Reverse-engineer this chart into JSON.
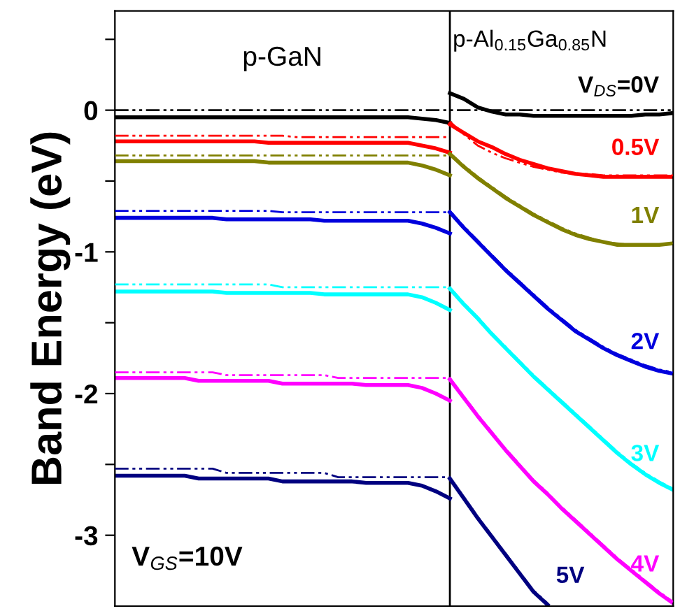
{
  "chart_data": {
    "type": "line",
    "ylabel": "Band Energy (eV)",
    "annotations": [
      "p-GaN",
      "V$_{GS}$=10V",
      "p-Al$_{0.15}$Ga$_{0.85}$N"
    ],
    "tick_labels": "y",
    "grid": false,
    "legend": false,
    "marker": "none",
    "ylim": [
      -3.5,
      0.7
    ],
    "yticks": [
      {
        "value": 0.5,
        "label": null
      },
      0,
      {
        "value": -0.5,
        "label": null
      },
      -1,
      {
        "value": -1.5,
        "label": null
      },
      -2,
      {
        "value": -2.5,
        "label": null
      },
      -3
    ],
    "categories": [
      null,
      null,
      null,
      null,
      null,
      null,
      null,
      null,
      null,
      null,
      null,
      null,
      null,
      null,
      null,
      null,
      null,
      null,
      null,
      null,
      null,
      null,
      null,
      null,
      null,
      null,
      null,
      null,
      null,
      null,
      null,
      null,
      null,
      null,
      null,
      null,
      null,
      null,
      null,
      null,
      null
    ],
    "series": [
      {
        "color": "#000000",
        "line_style": "solid",
        "values": [
          -0.05,
          -0.05,
          -0.05,
          -0.05,
          -0.05,
          -0.05,
          -0.05,
          -0.05,
          -0.05,
          -0.05,
          -0.05,
          -0.05,
          -0.05,
          -0.05,
          -0.05,
          -0.05,
          -0.05,
          -0.05,
          -0.05,
          -0.05,
          -0.05,
          -0.05,
          -0.06,
          -0.07,
          -0.09,
          null,
          null,
          null,
          null,
          null,
          null,
          null,
          null,
          null,
          null,
          null,
          null,
          null,
          null,
          null,
          null
        ]
      },
      {
        "color": "#000000",
        "line_style": "dashed",
        "values": [
          0,
          0,
          0,
          0,
          0,
          0,
          0,
          0,
          0,
          0,
          0,
          0,
          0,
          0,
          0,
          0,
          0,
          0,
          0,
          0,
          0,
          0,
          0,
          0,
          0,
          0,
          0,
          0,
          0,
          0,
          0,
          0,
          0,
          0,
          0,
          0,
          0,
          0,
          0,
          0,
          0
        ]
      },
      {
        "color": "#ff0000",
        "line_style": "solid",
        "values": [
          -0.22,
          -0.22,
          -0.22,
          -0.22,
          -0.22,
          -0.22,
          -0.22,
          -0.22,
          -0.22,
          -0.22,
          -0.22,
          -0.23,
          -0.23,
          -0.23,
          -0.23,
          -0.23,
          -0.23,
          -0.23,
          -0.23,
          -0.23,
          -0.23,
          -0.23,
          -0.25,
          -0.27,
          -0.3,
          null,
          null,
          null,
          null,
          null,
          null,
          null,
          null,
          null,
          null,
          null,
          null,
          null,
          null,
          null,
          null
        ]
      },
      {
        "color": "#ff0000",
        "line_style": "dashed",
        "values": [
          -0.18,
          -0.18,
          -0.18,
          -0.18,
          -0.18,
          -0.18,
          -0.18,
          -0.18,
          -0.18,
          -0.18,
          -0.18,
          -0.18,
          -0.18,
          -0.19,
          -0.19,
          -0.19,
          -0.19,
          -0.19,
          -0.19,
          -0.19,
          -0.19,
          -0.19,
          -0.19,
          -0.19,
          -0.19,
          null,
          null,
          null,
          null,
          null,
          null,
          null,
          null,
          null,
          null,
          null,
          null,
          null,
          null,
          null,
          null
        ]
      },
      {
        "color": "#808000",
        "line_style": "solid",
        "values": [
          -0.36,
          -0.36,
          -0.36,
          -0.36,
          -0.36,
          -0.36,
          -0.36,
          -0.36,
          -0.36,
          -0.36,
          -0.36,
          -0.37,
          -0.37,
          -0.37,
          -0.37,
          -0.37,
          -0.37,
          -0.37,
          -0.37,
          -0.37,
          -0.37,
          -0.37,
          -0.39,
          -0.42,
          -0.46,
          null,
          null,
          null,
          null,
          null,
          null,
          null,
          null,
          null,
          null,
          null,
          null,
          null,
          null,
          null,
          null
        ]
      },
      {
        "color": "#808000",
        "line_style": "dashed",
        "values": [
          -0.32,
          -0.32,
          -0.32,
          -0.32,
          -0.32,
          -0.32,
          -0.32,
          -0.32,
          -0.32,
          -0.32,
          -0.32,
          -0.32,
          -0.32,
          -0.32,
          -0.32,
          -0.32,
          -0.32,
          -0.32,
          -0.32,
          -0.32,
          -0.32,
          -0.32,
          -0.32,
          -0.32,
          -0.32,
          null,
          null,
          null,
          null,
          null,
          null,
          null,
          null,
          null,
          null,
          null,
          null,
          null,
          null,
          null,
          null
        ]
      },
      {
        "color": "#0000dd",
        "line_style": "solid",
        "values": [
          -0.76,
          -0.76,
          -0.76,
          -0.76,
          -0.76,
          -0.76,
          -0.76,
          -0.76,
          -0.77,
          -0.77,
          -0.77,
          -0.77,
          -0.77,
          -0.77,
          -0.77,
          -0.78,
          -0.78,
          -0.78,
          -0.78,
          -0.78,
          -0.78,
          -0.78,
          -0.8,
          -0.83,
          -0.87,
          null,
          null,
          null,
          null,
          null,
          null,
          null,
          null,
          null,
          null,
          null,
          null,
          null,
          null,
          null,
          null
        ]
      },
      {
        "color": "#0000dd",
        "line_style": "dashed",
        "values": [
          -0.71,
          -0.71,
          -0.71,
          -0.71,
          -0.71,
          -0.71,
          -0.71,
          -0.71,
          -0.71,
          -0.71,
          -0.71,
          -0.71,
          -0.72,
          -0.72,
          -0.72,
          -0.72,
          -0.72,
          -0.72,
          -0.72,
          -0.72,
          -0.72,
          -0.72,
          -0.72,
          -0.72,
          -0.72,
          null,
          null,
          null,
          null,
          null,
          null,
          null,
          null,
          null,
          null,
          null,
          null,
          null,
          null,
          null,
          null
        ]
      },
      {
        "color": "#00ffff",
        "line_style": "solid",
        "values": [
          -1.28,
          -1.28,
          -1.28,
          -1.28,
          -1.28,
          -1.28,
          -1.28,
          -1.28,
          -1.29,
          -1.29,
          -1.29,
          -1.29,
          -1.29,
          -1.29,
          -1.29,
          -1.3,
          -1.3,
          -1.3,
          -1.3,
          -1.3,
          -1.3,
          -1.3,
          -1.32,
          -1.36,
          -1.41,
          null,
          null,
          null,
          null,
          null,
          null,
          null,
          null,
          null,
          null,
          null,
          null,
          null,
          null,
          null,
          null
        ]
      },
      {
        "color": "#00ffff",
        "line_style": "dashed",
        "values": [
          -1.23,
          -1.23,
          -1.23,
          -1.23,
          -1.23,
          -1.23,
          -1.23,
          -1.23,
          -1.23,
          -1.23,
          -1.23,
          -1.23,
          -1.25,
          -1.25,
          -1.25,
          -1.25,
          -1.25,
          -1.25,
          -1.25,
          -1.25,
          -1.25,
          -1.25,
          -1.25,
          -1.25,
          -1.25,
          null,
          null,
          null,
          null,
          null,
          null,
          null,
          null,
          null,
          null,
          null,
          null,
          null,
          null,
          null,
          null
        ]
      },
      {
        "color": "#ff00ff",
        "line_style": "solid",
        "values": [
          -1.89,
          -1.89,
          -1.89,
          -1.89,
          -1.89,
          -1.89,
          -1.91,
          -1.91,
          -1.91,
          -1.91,
          -1.91,
          -1.91,
          -1.93,
          -1.93,
          -1.93,
          -1.93,
          -1.93,
          -1.93,
          -1.94,
          -1.94,
          -1.94,
          -1.94,
          -1.96,
          -2.0,
          -2.05,
          null,
          null,
          null,
          null,
          null,
          null,
          null,
          null,
          null,
          null,
          null,
          null,
          null,
          null,
          null,
          null
        ]
      },
      {
        "color": "#ff00ff",
        "line_style": "dashed",
        "values": [
          -1.85,
          -1.85,
          -1.85,
          -1.85,
          -1.85,
          -1.85,
          -1.85,
          -1.85,
          -1.87,
          -1.87,
          -1.87,
          -1.87,
          -1.87,
          -1.87,
          -1.87,
          -1.87,
          -1.89,
          -1.89,
          -1.89,
          -1.89,
          -1.89,
          -1.89,
          -1.89,
          -1.89,
          -1.89,
          null,
          null,
          null,
          null,
          null,
          null,
          null,
          null,
          null,
          null,
          null,
          null,
          null,
          null,
          null,
          null
        ]
      },
      {
        "color": "#000080",
        "line_style": "solid",
        "values": [
          -2.58,
          -2.58,
          -2.58,
          -2.58,
          -2.58,
          -2.58,
          -2.6,
          -2.6,
          -2.6,
          -2.6,
          -2.6,
          -2.6,
          -2.62,
          -2.62,
          -2.62,
          -2.62,
          -2.62,
          -2.62,
          -2.63,
          -2.63,
          -2.63,
          -2.63,
          -2.65,
          -2.69,
          -2.74,
          null,
          null,
          null,
          null,
          null,
          null,
          null,
          null,
          null,
          null,
          null,
          null,
          null,
          null,
          null,
          null
        ]
      },
      {
        "color": "#000080",
        "line_style": "dashed",
        "values": [
          -2.53,
          -2.53,
          -2.53,
          -2.53,
          -2.53,
          -2.53,
          -2.53,
          -2.53,
          -2.56,
          -2.56,
          -2.56,
          -2.56,
          -2.56,
          -2.56,
          -2.56,
          -2.56,
          -2.59,
          -2.59,
          -2.59,
          -2.59,
          -2.59,
          -2.59,
          -2.59,
          -2.59,
          -2.59,
          null,
          null,
          null,
          null,
          null,
          null,
          null,
          null,
          null,
          null,
          null,
          null,
          null,
          null,
          null,
          null
        ]
      },
      {
        "name": "V$_{DS}$=0V",
        "color": "#000000",
        "line_style": "solid",
        "values": [
          null,
          null,
          null,
          null,
          null,
          null,
          null,
          null,
          null,
          null,
          null,
          null,
          null,
          null,
          null,
          null,
          null,
          null,
          null,
          null,
          null,
          null,
          null,
          null,
          0.12,
          0.08,
          0.02,
          -0.01,
          -0.03,
          -0.03,
          -0.04,
          -0.04,
          -0.04,
          -0.04,
          -0.04,
          -0.04,
          -0.04,
          -0.04,
          -0.03,
          -0.03,
          -0.02
        ]
      },
      {
        "name": "0.5V",
        "color": "#ff0000",
        "line_style": "solid",
        "values": [
          null,
          null,
          null,
          null,
          null,
          null,
          null,
          null,
          null,
          null,
          null,
          null,
          null,
          null,
          null,
          null,
          null,
          null,
          null,
          null,
          null,
          null,
          null,
          null,
          -0.1,
          -0.16,
          -0.22,
          -0.26,
          -0.31,
          -0.35,
          -0.38,
          -0.41,
          -0.43,
          -0.45,
          -0.46,
          -0.47,
          -0.47,
          -0.47,
          -0.47,
          -0.47,
          -0.47
        ]
      },
      {
        "color": "#ff0000",
        "line_style": "dashed",
        "values": [
          null,
          null,
          null,
          null,
          null,
          null,
          null,
          null,
          null,
          null,
          null,
          null,
          null,
          null,
          null,
          null,
          null,
          null,
          null,
          null,
          null,
          null,
          null,
          null,
          -0.08,
          -0.17,
          -0.25,
          -0.3,
          -0.34,
          -0.37,
          -0.4,
          -0.42,
          -0.44,
          -0.45,
          -0.45,
          -0.46,
          -0.46,
          -0.46,
          -0.46,
          -0.46,
          -0.46
        ]
      },
      {
        "name": "1V",
        "color": "#808000",
        "line_style": "solid",
        "values": [
          null,
          null,
          null,
          null,
          null,
          null,
          null,
          null,
          null,
          null,
          null,
          null,
          null,
          null,
          null,
          null,
          null,
          null,
          null,
          null,
          null,
          null,
          null,
          null,
          -0.31,
          -0.4,
          -0.48,
          -0.55,
          -0.62,
          -0.68,
          -0.74,
          -0.79,
          -0.84,
          -0.88,
          -0.91,
          -0.93,
          -0.95,
          -0.95,
          -0.95,
          -0.95,
          -0.94
        ]
      },
      {
        "color": "#808000",
        "line_style": "dashed",
        "values": [
          null,
          null,
          null,
          null,
          null,
          null,
          null,
          null,
          null,
          null,
          null,
          null,
          null,
          null,
          null,
          null,
          null,
          null,
          null,
          null,
          null,
          null,
          null,
          null,
          -0.3,
          -0.39,
          -0.47,
          -0.54,
          -0.61,
          -0.67,
          -0.73,
          -0.78,
          -0.83,
          -0.87,
          -0.9,
          -0.93,
          -0.94,
          -0.95,
          -0.95,
          -0.95,
          -0.94
        ]
      },
      {
        "name": "2V",
        "color": "#0000dd",
        "line_style": "solid",
        "values": [
          null,
          null,
          null,
          null,
          null,
          null,
          null,
          null,
          null,
          null,
          null,
          null,
          null,
          null,
          null,
          null,
          null,
          null,
          null,
          null,
          null,
          null,
          null,
          null,
          -0.72,
          -0.83,
          -0.93,
          -1.03,
          -1.13,
          -1.22,
          -1.31,
          -1.4,
          -1.48,
          -1.56,
          -1.62,
          -1.68,
          -1.73,
          -1.77,
          -1.81,
          -1.84,
          -1.86
        ]
      },
      {
        "color": "#0000dd",
        "line_style": "dashed",
        "values": [
          null,
          null,
          null,
          null,
          null,
          null,
          null,
          null,
          null,
          null,
          null,
          null,
          null,
          null,
          null,
          null,
          null,
          null,
          null,
          null,
          null,
          null,
          null,
          null,
          -0.71,
          -0.82,
          -0.92,
          -1.02,
          -1.12,
          -1.21,
          -1.3,
          -1.39,
          -1.47,
          -1.55,
          -1.61,
          -1.67,
          -1.72,
          -1.76,
          -1.8,
          -1.83,
          -1.85
        ]
      },
      {
        "name": "3V",
        "color": "#00ffff",
        "line_style": "solid",
        "values": [
          null,
          null,
          null,
          null,
          null,
          null,
          null,
          null,
          null,
          null,
          null,
          null,
          null,
          null,
          null,
          null,
          null,
          null,
          null,
          null,
          null,
          null,
          null,
          null,
          -1.26,
          -1.37,
          -1.47,
          -1.58,
          -1.68,
          -1.78,
          -1.88,
          -1.97,
          -2.06,
          -2.15,
          -2.24,
          -2.33,
          -2.42,
          -2.5,
          -2.57,
          -2.63,
          -2.68
        ]
      },
      {
        "color": "#00ffff",
        "line_style": "dashed",
        "values": [
          null,
          null,
          null,
          null,
          null,
          null,
          null,
          null,
          null,
          null,
          null,
          null,
          null,
          null,
          null,
          null,
          null,
          null,
          null,
          null,
          null,
          null,
          null,
          null,
          -1.25,
          -1.36,
          -1.46,
          -1.57,
          -1.67,
          -1.77,
          -1.87,
          -1.96,
          -2.05,
          -2.14,
          -2.23,
          -2.32,
          -2.41,
          -2.49,
          -2.56,
          -2.62,
          -2.67
        ]
      },
      {
        "name": "4V",
        "color": "#ff00ff",
        "line_style": "solid",
        "values": [
          null,
          null,
          null,
          null,
          null,
          null,
          null,
          null,
          null,
          null,
          null,
          null,
          null,
          null,
          null,
          null,
          null,
          null,
          null,
          null,
          null,
          null,
          null,
          null,
          -1.9,
          -2.03,
          -2.16,
          -2.28,
          -2.4,
          -2.51,
          -2.62,
          -2.71,
          -2.81,
          -2.9,
          -2.99,
          -3.08,
          -3.17,
          -3.25,
          -3.33,
          -3.41,
          -3.48
        ]
      },
      {
        "color": "#ff00ff",
        "line_style": "dashed",
        "values": [
          null,
          null,
          null,
          null,
          null,
          null,
          null,
          null,
          null,
          null,
          null,
          null,
          null,
          null,
          null,
          null,
          null,
          null,
          null,
          null,
          null,
          null,
          null,
          null,
          -1.89,
          -2.02,
          -2.15,
          -2.27,
          -2.39,
          -2.5,
          -2.61,
          -2.7,
          -2.8,
          -2.89,
          -2.98,
          -3.07,
          -3.16,
          -3.24,
          -3.32,
          -3.4,
          -3.47
        ]
      },
      {
        "name": "5V",
        "color": "#000080",
        "line_style": "solid",
        "values": [
          null,
          null,
          null,
          null,
          null,
          null,
          null,
          null,
          null,
          null,
          null,
          null,
          null,
          null,
          null,
          null,
          null,
          null,
          null,
          null,
          null,
          null,
          null,
          null,
          -2.6,
          -2.74,
          -2.88,
          -3.01,
          -3.14,
          -3.27,
          -3.4,
          -3.49,
          null,
          null,
          null,
          null,
          null,
          null,
          null,
          null,
          null
        ]
      },
      {
        "color": "#000080",
        "line_style": "dashed",
        "values": [
          null,
          null,
          null,
          null,
          null,
          null,
          null,
          null,
          null,
          null,
          null,
          null,
          null,
          null,
          null,
          null,
          null,
          null,
          null,
          null,
          null,
          null,
          null,
          null,
          -2.59,
          -2.73,
          -2.87,
          -3.0,
          -3.13,
          -3.26,
          -3.39,
          -3.48,
          null,
          null,
          null,
          null,
          null,
          null,
          null,
          null,
          null
        ]
      }
    ]
  }
}
